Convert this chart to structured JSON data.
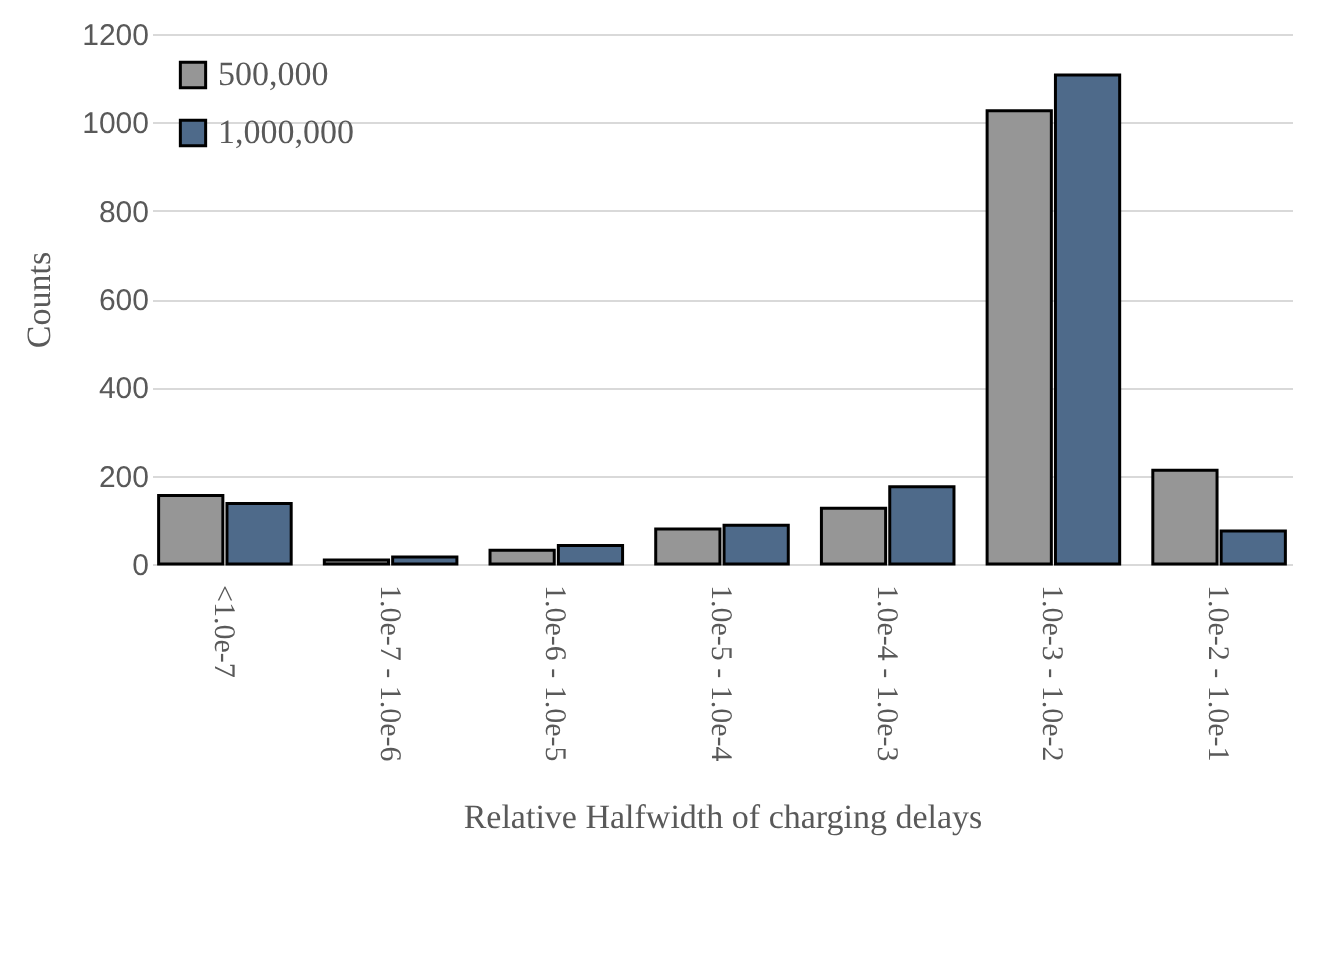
{
  "chart_data": {
    "type": "bar",
    "xlabel": "Relative Halfwidth of charging delays",
    "ylabel": "Counts",
    "categories": [
      "<1.0e-7",
      "1.0e-7 - 1.0e-6",
      "1.0e-6 - 1.0e-5",
      "1.0e-5 - 1.0e-4",
      "1.0e-4 - 1.0e-3",
      "1.0e-3 - 1.0e-2",
      "1.0e-2 - 1.0e-1"
    ],
    "series": [
      {
        "name": "500,000",
        "color": "#969696",
        "values": [
          155,
          9,
          31,
          79,
          126,
          1026,
          212
        ]
      },
      {
        "name": "1,000,000",
        "color": "#4e6a8a",
        "values": [
          137,
          16,
          42,
          88,
          175,
          1107,
          75
        ]
      }
    ],
    "ylim": [
      0,
      1200
    ],
    "yticks": [
      0,
      200,
      400,
      600,
      800,
      1000,
      1200
    ],
    "grid": "y",
    "legend": "top left"
  }
}
